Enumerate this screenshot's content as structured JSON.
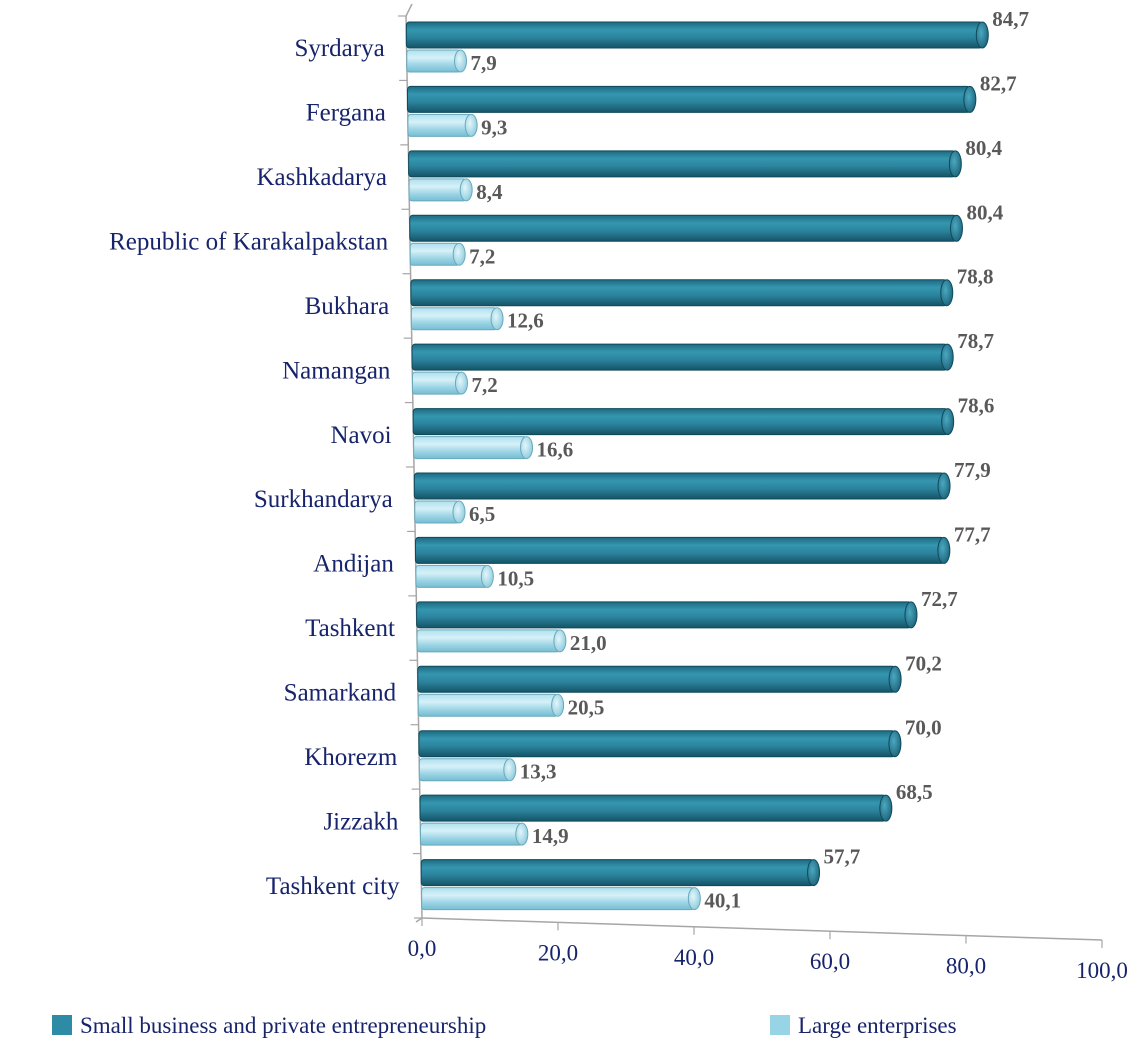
{
  "chart_data": {
    "type": "bar",
    "orientation": "horizontal",
    "categories": [
      "Syrdarya",
      "Fergana",
      "Kashkadarya",
      "Republic of Karakalpakstan",
      "Bukhara",
      "Namangan",
      "Navoi",
      "Surkhandarya",
      "Andijan",
      "Tashkent",
      "Samarkand",
      "Khorezm",
      "Jizzakh",
      "Tashkent city"
    ],
    "series": [
      {
        "name": "Small business and private entrepreneurship",
        "color": "#2e8ba5",
        "values": [
          84.7,
          82.7,
          80.4,
          80.4,
          78.8,
          78.7,
          78.6,
          77.9,
          77.7,
          72.7,
          70.2,
          70.0,
          68.5,
          57.7
        ],
        "labels": [
          "84,7",
          "82,7",
          "80,4",
          "80,4",
          "78,8",
          "78,7",
          "78,6",
          "77,9",
          "77,7",
          "72,7",
          "70,2",
          "70,0",
          "68,5",
          "57,7"
        ]
      },
      {
        "name": "Large enterprises",
        "color": "#97d5e6",
        "values": [
          7.9,
          9.3,
          8.4,
          7.2,
          12.6,
          7.2,
          16.6,
          6.5,
          10.5,
          21.0,
          20.5,
          13.3,
          14.9,
          40.1
        ],
        "labels": [
          "7,9",
          "9,3",
          "8,4",
          "7,2",
          "12,6",
          "7,2",
          "16,6",
          "6,5",
          "10,5",
          "21,0",
          "20,5",
          "13,3",
          "14,9",
          "40,1"
        ]
      }
    ],
    "xlim": [
      0,
      100
    ],
    "xticks": [
      "0,0",
      "20,0",
      "40,0",
      "60,0",
      "80,0",
      "100,0"
    ],
    "grid": false,
    "legend_position": "bottom",
    "title": "",
    "xlabel": "",
    "ylabel": ""
  }
}
